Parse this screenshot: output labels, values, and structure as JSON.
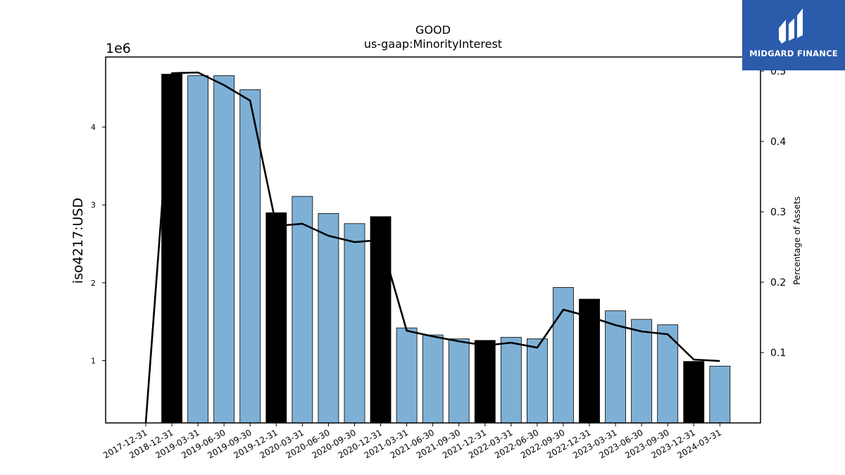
{
  "chart_data": {
    "type": "bar",
    "title": "GOOD",
    "subtitle": "us-gaap:MinorityInterest",
    "ylabel": "iso4217:USD",
    "y_multiplier": "1e6",
    "y2label": "Percentage of Assets",
    "categories": [
      "2017-12-31",
      "2018-12-31",
      "2019-03-31",
      "2019-06-30",
      "2019-09-30",
      "2019-12-31",
      "2020-03-31",
      "2020-06-30",
      "2020-09-30",
      "2020-12-31",
      "2021-03-31",
      "2021-06-30",
      "2021-09-30",
      "2021-12-31",
      "2022-03-31",
      "2022-06-30",
      "2022-09-30",
      "2022-12-31",
      "2023-03-31",
      "2023-06-30",
      "2023-09-30",
      "2023-12-31",
      "2024-03-31"
    ],
    "series": [
      {
        "kind": "bar",
        "axis": "left",
        "values": [
          null,
          4.68,
          4.66,
          4.66,
          4.48,
          2.9,
          3.11,
          2.89,
          2.76,
          2.85,
          1.42,
          1.33,
          1.28,
          1.26,
          1.3,
          1.28,
          1.94,
          1.79,
          1.64,
          1.53,
          1.46,
          0.99,
          0.93
        ],
        "annual": [
          false,
          true,
          false,
          false,
          false,
          true,
          false,
          false,
          false,
          true,
          false,
          false,
          false,
          true,
          false,
          false,
          false,
          true,
          false,
          false,
          false,
          true,
          false
        ]
      },
      {
        "kind": "line",
        "axis": "right",
        "values": [
          0.0,
          0.497,
          0.498,
          0.48,
          0.458,
          0.28,
          0.283,
          0.266,
          0.257,
          0.26,
          0.131,
          0.123,
          0.116,
          0.11,
          0.114,
          0.107,
          0.161,
          0.151,
          0.139,
          0.13,
          0.126,
          0.09,
          0.088
        ]
      }
    ],
    "yticks": [
      1,
      2,
      3,
      4
    ],
    "ylim": [
      0.2,
      4.9
    ],
    "y2ticks": [
      "0.1",
      "0.2",
      "0.3",
      "0.4",
      "0.5"
    ],
    "y2lim": [
      0.0,
      0.52
    ],
    "colors": {
      "annual_bar": "#000000",
      "quarter_bar": "#7eb0d5",
      "line": "#000000",
      "axis": "#000000"
    },
    "grid": false
  },
  "logo": {
    "text": "MIDGARD FINANCE",
    "icon": "midgard-logo-icon"
  }
}
